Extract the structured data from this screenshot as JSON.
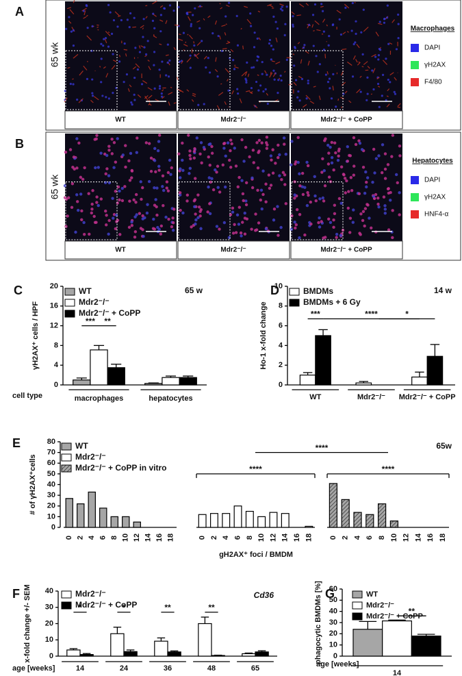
{
  "image_panels": [
    {
      "label": "A",
      "side_label": "65 wk",
      "columns": [
        "WT",
        "Mdr2⁻/⁻",
        "Mdr2⁻/⁻ + CoPP"
      ],
      "legend_title": "Macrophages",
      "legend": [
        {
          "name": "DAPI",
          "color": "#2a2ae8"
        },
        {
          "name": "γH2AX",
          "color": "#2ee65a"
        },
        {
          "name": "F4/80",
          "color": "#e62a2a"
        }
      ]
    },
    {
      "label": "B",
      "side_label": "65 wk",
      "columns": [
        "WT",
        "Mdr2⁻/⁻",
        "Mdr2⁻/⁻ + CoPP"
      ],
      "legend_title": "Hepatocytes",
      "legend": [
        {
          "name": "DAPI",
          "color": "#2a2ae8"
        },
        {
          "name": "γH2AX",
          "color": "#2ee65a"
        },
        {
          "name": "HNF4-α",
          "color": "#e62a2a"
        }
      ]
    }
  ],
  "chart_data": [
    {
      "type": "bar",
      "label": "C",
      "annotation": "65 w",
      "ylabel": "γH2AX⁺ cells / HPF",
      "xlabel": "cell type",
      "categories": [
        "macrophages",
        "hepatocytes"
      ],
      "series": [
        {
          "name": "WT",
          "color": "#a6a6a6",
          "values": [
            1.0,
            0.3
          ],
          "errors": [
            0.4,
            0.1
          ]
        },
        {
          "name": "Mdr2⁻/⁻",
          "color": "#ffffff",
          "values": [
            7.1,
            1.5
          ],
          "errors": [
            0.9,
            0.3
          ]
        },
        {
          "name": "Mdr2⁻/⁻ + CoPP",
          "color": "#000000",
          "values": [
            3.5,
            1.5
          ],
          "errors": [
            0.7,
            0.3
          ]
        }
      ],
      "ylim": [
        0,
        20
      ],
      "yticks": [
        0,
        4,
        8,
        12,
        16,
        20
      ],
      "significance": [
        "***",
        "**"
      ]
    },
    {
      "type": "bar",
      "label": "D",
      "annotation": "14 w",
      "ylabel": "Ho-1 x-fold change",
      "categories": [
        "WT",
        "Mdr2⁻/⁻",
        "Mdr2⁻/⁻ + CoPP"
      ],
      "series": [
        {
          "name": "BMDMs",
          "color": "#ffffff",
          "values": [
            1.0,
            0.2,
            0.8
          ],
          "errors": [
            0.25,
            0.15,
            0.5
          ]
        },
        {
          "name": "BMDMs + 6 Gy",
          "color": "#000000",
          "values": [
            5.0,
            null,
            2.9
          ],
          "errors": [
            0.6,
            null,
            1.2
          ]
        }
      ],
      "ylim": [
        0,
        10
      ],
      "yticks": [
        0,
        2,
        4,
        6,
        8,
        10
      ],
      "significance": [
        "***",
        "****",
        "*"
      ]
    },
    {
      "type": "bar",
      "label": "E",
      "annotation": "65w",
      "ylabel": "# of γH2AX⁺cells",
      "xlabel": "gH2AX⁺ foci / BMDM",
      "categories": [
        0,
        2,
        4,
        6,
        8,
        10,
        12,
        14,
        16,
        18
      ],
      "series": [
        {
          "name": "WT",
          "color": "#a6a6a6",
          "values": [
            27,
            22,
            33,
            18,
            10,
            10,
            5,
            0,
            0,
            0
          ]
        },
        {
          "name": "Mdr2⁻/⁻",
          "color": "#ffffff",
          "values": [
            12,
            13,
            13,
            20,
            15,
            10,
            14,
            13,
            0,
            1
          ]
        },
        {
          "name": "Mdr2⁻/⁻ + CoPP in vitro",
          "color": "#a6a6a6",
          "pattern": "hatched",
          "values": [
            41,
            26,
            14,
            12,
            22,
            6,
            0,
            0,
            0,
            0
          ]
        }
      ],
      "ylim": [
        0,
        80
      ],
      "yticks": [
        0,
        10,
        20,
        30,
        40,
        50,
        60,
        70,
        80
      ],
      "significance": [
        "****",
        "****",
        "****"
      ]
    },
    {
      "type": "bar",
      "label": "F",
      "annotation": "Cd36",
      "ylabel": "x-fold change +/- SEM",
      "xlabel": "age [weeks]",
      "categories": [
        "14",
        "24",
        "36",
        "48",
        "65"
      ],
      "series": [
        {
          "name": "Mdr2⁻/⁻",
          "color": "#ffffff",
          "values": [
            3.8,
            13.8,
            9.2,
            20,
            1.5
          ],
          "errors": [
            0.8,
            4,
            2,
            4,
            0.4
          ]
        },
        {
          "name": "Mdr2⁻/⁻ + CoPP",
          "color": "#000000",
          "values": [
            1.0,
            2.8,
            2.6,
            0.4,
            2.6
          ],
          "errors": [
            0.6,
            1,
            0.6,
            0.2,
            0.7
          ]
        }
      ],
      "ylim": [
        0,
        40
      ],
      "yticks": [
        0,
        10,
        20,
        30,
        40
      ],
      "significance": [
        "*",
        "*",
        "**",
        "**"
      ]
    },
    {
      "type": "bar",
      "label": "G",
      "ylabel": "phagocytic BMDMs [%]",
      "xlabel": "age [weeks]",
      "categories": [
        "14"
      ],
      "series": [
        {
          "name": "WT",
          "color": "#a6a6a6",
          "values": [
            24
          ],
          "errors": [
            7
          ]
        },
        {
          "name": "Mdr2⁻/⁻",
          "color": "#ffffff",
          "values": [
            31.5
          ],
          "errors": [
            0.8
          ]
        },
        {
          "name": "Mdr2⁻/⁻ + CoPP",
          "color": "#000000",
          "values": [
            18
          ],
          "errors": [
            1.5
          ]
        }
      ],
      "ylim": [
        0,
        60
      ],
      "yticks": [
        0,
        10,
        20,
        30,
        40,
        50,
        60
      ],
      "significance": [
        "**"
      ]
    }
  ]
}
